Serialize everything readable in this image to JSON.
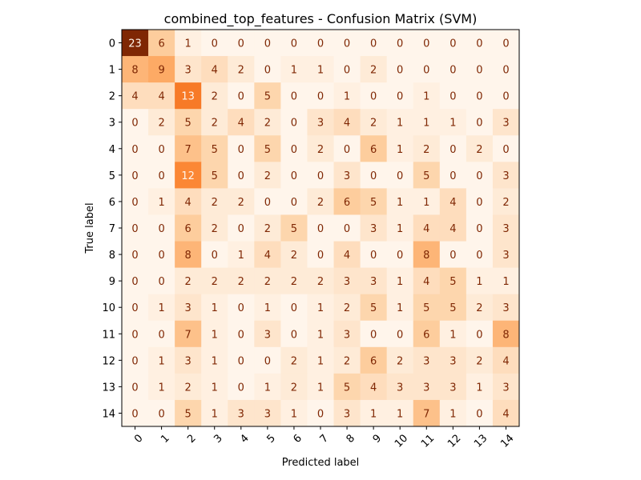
{
  "chart_data": {
    "type": "heatmap",
    "title": "combined_top_features - Confusion Matrix (SVM)",
    "xlabel": "Predicted label",
    "ylabel": "True label",
    "x_categories": [
      "0",
      "1",
      "2",
      "3",
      "4",
      "5",
      "6",
      "7",
      "8",
      "9",
      "10",
      "11",
      "12",
      "13",
      "14"
    ],
    "y_categories": [
      "0",
      "1",
      "2",
      "3",
      "4",
      "5",
      "6",
      "7",
      "8",
      "9",
      "10",
      "11",
      "12",
      "13",
      "14"
    ],
    "colormap": "Oranges",
    "color_range": [
      0,
      23
    ],
    "colors": {
      "low": "#fff5eb",
      "high": "#7f2704",
      "text_dark": "#7f2704",
      "text_light": "#fff5eb"
    },
    "values": [
      [
        23,
        6,
        1,
        0,
        0,
        0,
        0,
        0,
        0,
        0,
        0,
        0,
        0,
        0,
        0
      ],
      [
        8,
        9,
        3,
        4,
        2,
        0,
        1,
        1,
        0,
        2,
        0,
        0,
        0,
        0,
        0
      ],
      [
        4,
        4,
        13,
        2,
        0,
        5,
        0,
        0,
        1,
        0,
        0,
        1,
        0,
        0,
        0
      ],
      [
        0,
        2,
        5,
        2,
        4,
        2,
        0,
        3,
        4,
        2,
        1,
        1,
        1,
        0,
        3
      ],
      [
        0,
        0,
        7,
        5,
        0,
        5,
        0,
        2,
        0,
        6,
        1,
        2,
        0,
        2,
        0
      ],
      [
        0,
        0,
        12,
        5,
        0,
        2,
        0,
        0,
        3,
        0,
        0,
        5,
        0,
        0,
        3
      ],
      [
        0,
        1,
        4,
        2,
        2,
        0,
        0,
        2,
        6,
        5,
        1,
        1,
        4,
        0,
        2
      ],
      [
        0,
        0,
        6,
        2,
        0,
        2,
        5,
        0,
        0,
        3,
        1,
        4,
        4,
        0,
        3
      ],
      [
        0,
        0,
        8,
        0,
        1,
        4,
        2,
        0,
        4,
        0,
        0,
        8,
        0,
        0,
        3
      ],
      [
        0,
        0,
        2,
        2,
        2,
        2,
        2,
        2,
        3,
        3,
        1,
        4,
        5,
        1,
        1
      ],
      [
        0,
        1,
        3,
        1,
        0,
        1,
        0,
        1,
        2,
        5,
        1,
        5,
        5,
        2,
        3
      ],
      [
        0,
        0,
        7,
        1,
        0,
        3,
        0,
        1,
        3,
        0,
        0,
        6,
        1,
        0,
        8
      ],
      [
        0,
        1,
        3,
        1,
        0,
        0,
        2,
        1,
        2,
        6,
        2,
        3,
        3,
        2,
        4
      ],
      [
        0,
        1,
        2,
        1,
        0,
        1,
        2,
        1,
        5,
        4,
        3,
        3,
        3,
        1,
        3
      ],
      [
        0,
        0,
        5,
        1,
        3,
        3,
        1,
        0,
        3,
        1,
        1,
        7,
        1,
        0,
        4
      ]
    ]
  }
}
